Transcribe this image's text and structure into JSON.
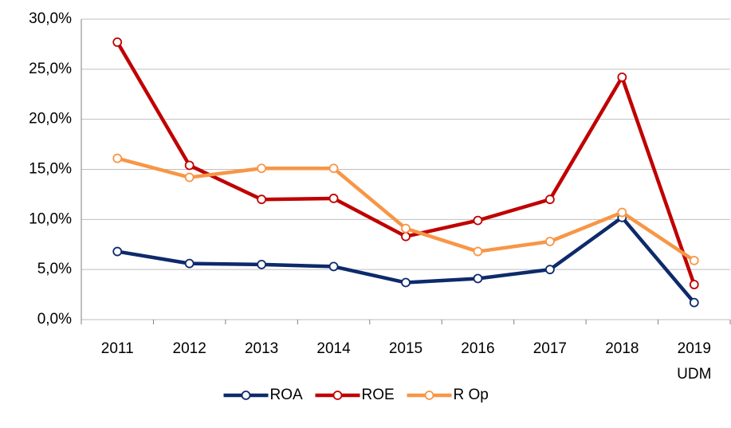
{
  "chart_data": {
    "type": "line",
    "categories": [
      "2011",
      "2012",
      "2013",
      "2014",
      "2015",
      "2016",
      "2017",
      "2018",
      "2019 UDM"
    ],
    "series": [
      {
        "name": "ROA",
        "color": "#0d2a6b",
        "values": [
          6.8,
          5.6,
          5.5,
          5.3,
          3.7,
          4.1,
          5.0,
          10.2,
          1.7
        ]
      },
      {
        "name": "ROE",
        "color": "#c00000",
        "values": [
          27.7,
          15.4,
          12.0,
          12.1,
          8.3,
          9.9,
          12.0,
          24.2,
          3.5
        ]
      },
      {
        "name": "R Op",
        "color": "#f79646",
        "values": [
          16.1,
          14.2,
          15.1,
          15.1,
          9.1,
          6.8,
          7.8,
          10.7,
          5.9
        ]
      }
    ],
    "ylim": [
      0,
      30
    ],
    "yticks": [
      {
        "value": 0,
        "label": "0,0%"
      },
      {
        "value": 5,
        "label": "5,0%"
      },
      {
        "value": 10,
        "label": "10,0%"
      },
      {
        "value": 15,
        "label": "15,0%"
      },
      {
        "value": 20,
        "label": "20,0%"
      },
      {
        "value": 25,
        "label": "25,0%"
      },
      {
        "value": 30,
        "label": "30,0%"
      }
    ],
    "grid": true,
    "legend": "bottom"
  }
}
